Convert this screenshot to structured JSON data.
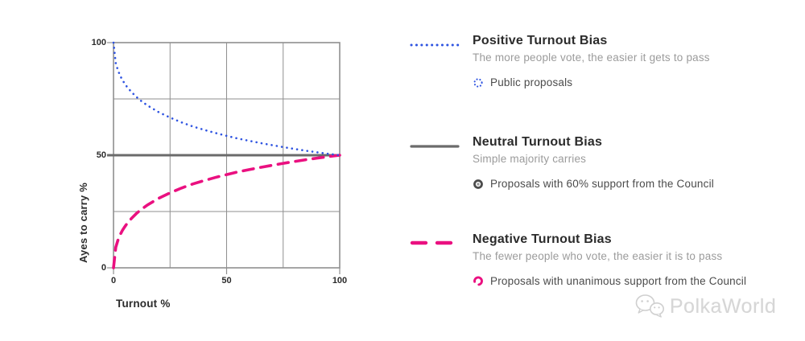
{
  "chart": {
    "y_axis_title": "Ayes to carry %",
    "x_axis_title": "Turnout %",
    "y_ticks": [
      "100",
      "50",
      "0"
    ],
    "x_ticks": [
      "0",
      "50",
      "100"
    ]
  },
  "chart_data": {
    "type": "line",
    "title": "",
    "xlabel": "Turnout %",
    "ylabel": "Ayes to carry %",
    "xlim": [
      0,
      100
    ],
    "ylim": [
      0,
      100
    ],
    "grid": true,
    "grid_step": 25,
    "x_tick_values": [
      0,
      50,
      100
    ],
    "y_tick_values": [
      0,
      50,
      100
    ],
    "grid_color": "#8f8f8f",
    "legend_position": "right",
    "series": [
      {
        "name": "Positive Turnout Bias",
        "style": "dotted",
        "color": "#2f54e1",
        "x": [
          0,
          1,
          2,
          3,
          4,
          5,
          6,
          8,
          10,
          12,
          15,
          20,
          25,
          30,
          35,
          40,
          45,
          50,
          55,
          60,
          65,
          70,
          75,
          80,
          85,
          90,
          95,
          100
        ],
        "y": [
          100,
          90.9,
          87.6,
          85.2,
          83.3,
          81.7,
          80.3,
          78,
          76,
          74.3,
          72.1,
          69.1,
          66.7,
          64.6,
          62.8,
          61.3,
          59.9,
          58.6,
          57.4,
          56.4,
          55.4,
          54.5,
          53.6,
          52.8,
          52,
          51.3,
          50.6,
          50
        ]
      },
      {
        "name": "Neutral Turnout Bias",
        "style": "solid",
        "color": "#6b6b6b",
        "x": [
          0,
          100
        ],
        "y": [
          50,
          50
        ]
      },
      {
        "name": "Negative Turnout Bias",
        "style": "dashed",
        "color": "#ea1080",
        "x": [
          0,
          1,
          2,
          3,
          4,
          5,
          6,
          8,
          10,
          12,
          15,
          20,
          25,
          30,
          35,
          40,
          45,
          50,
          55,
          60,
          65,
          70,
          75,
          80,
          85,
          90,
          95,
          100
        ],
        "y": [
          0,
          9.1,
          12.4,
          14.8,
          16.7,
          18.3,
          19.7,
          22,
          24,
          25.7,
          27.9,
          30.9,
          33.3,
          35.4,
          37.2,
          38.7,
          40.1,
          41.4,
          42.6,
          43.6,
          44.6,
          45.5,
          46.4,
          47.2,
          48,
          48.7,
          49.4,
          50
        ]
      }
    ]
  },
  "legend": [
    {
      "title": "Positive Turnout Bias",
      "subtitle": "The more people vote, the easier it gets to pass",
      "item": "Public proposals",
      "color": "#2f54e1"
    },
    {
      "title": "Neutral Turnout Bias",
      "subtitle": "Simple majority carries",
      "item": "Proposals with 60% support from the Council",
      "color": "#6b6b6b"
    },
    {
      "title": "Negative Turnout Bias",
      "subtitle": "The fewer people who vote, the easier it is to pass",
      "item": "Proposals with unanimous support from the Council",
      "color": "#ea1080"
    }
  ],
  "watermark": {
    "text": "PolkaWorld"
  }
}
